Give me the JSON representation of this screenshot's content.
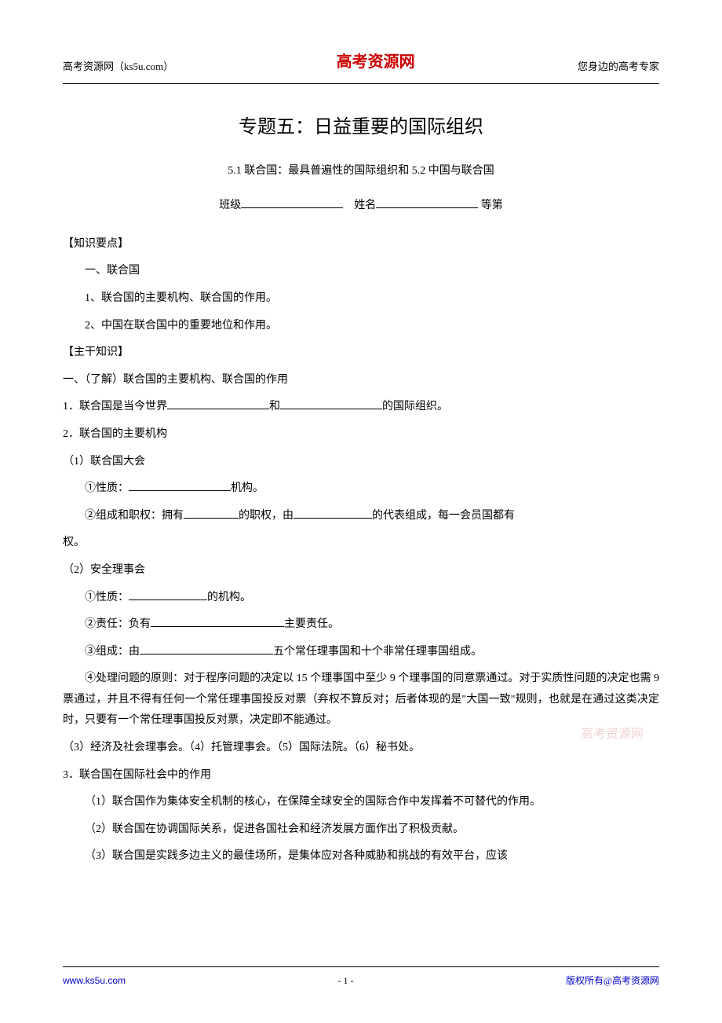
{
  "header": {
    "left": "高考资源网（ks5u.com）",
    "center": "高考资源网",
    "center_color": "#cc0000",
    "right": "您身边的高考专家"
  },
  "title": "专题五：日益重要的国际组织",
  "subtitle": "5.1 联合国：最具普遍性的国际组织和 5.2 中国与联合国",
  "form": {
    "class_label": "班级",
    "name_label": "姓名",
    "grade_label": "等第"
  },
  "sections": {
    "s1_head": "【知识要点】",
    "s1_1": "一、联合国",
    "s1_2": "1、联合国的主要机构、联合国的作用。",
    "s1_3": "2、中国在联合国中的重要地位和作用。",
    "s2_head": "【主干知识】",
    "s2_1": "一、（了解）联合国的主要机构、联合国的作用",
    "s2_2a": "1．联合国是当今世界",
    "s2_2b": "和",
    "s2_2c": "的国际组织。",
    "s2_3": "2．联合国的主要机构",
    "s2_4": "（1）联合国大会",
    "s2_5a": "①性质：",
    "s2_5b": "机构。",
    "s2_6a": "②组成和职权：拥有",
    "s2_6b": "的职权，由",
    "s2_6c": "的代表组成，每一会员国都有",
    "s2_7": "权。",
    "s2_8": "（2）安全理事会",
    "s2_9a": "①性质：",
    "s2_9b": "的机构。",
    "s2_10a": "②责任：负有",
    "s2_10b": "主要责任。",
    "s2_11a": "③组成：由",
    "s2_11b": "五个常任理事国和十个非常任理事国组成。",
    "s2_12": "④处理问题的原则：对于程序问题的决定以 15 个理事国中至少 9 个理事国的同意票通过。对于实质性问题的决定也需 9 票通过，并且不得有任何一个常任理事国投反对票（弃权不算反对；后者体现的是\"大国一致\"规则，也就是在通过这类决定时，只要有一个常任理事国投反对票，决定即不能通过。",
    "s2_13": "（3）经济及社会理事会。（4）托管理事会。（5）国际法院。（6）秘书处。",
    "s2_14": "3．联合国在国际社会中的作用",
    "s2_15": "（1）联合国作为集体安全机制的核心，在保障全球安全的国际合作中发挥着不可替代的作用。",
    "s2_16": "（2）联合国在协调国际关系，促进各国社会和经济发展方面作出了积极贡献。",
    "s2_17": "（3）联合国是实践多边主义的最佳场所，是集体应对各种威胁和挑战的有效平台，应该"
  },
  "watermark": {
    "text": "高考资源网",
    "color": "#d08080"
  },
  "footer": {
    "left": "www.ks5u.com",
    "center": "- 1 -",
    "right": "版权所有@高考资源网"
  }
}
